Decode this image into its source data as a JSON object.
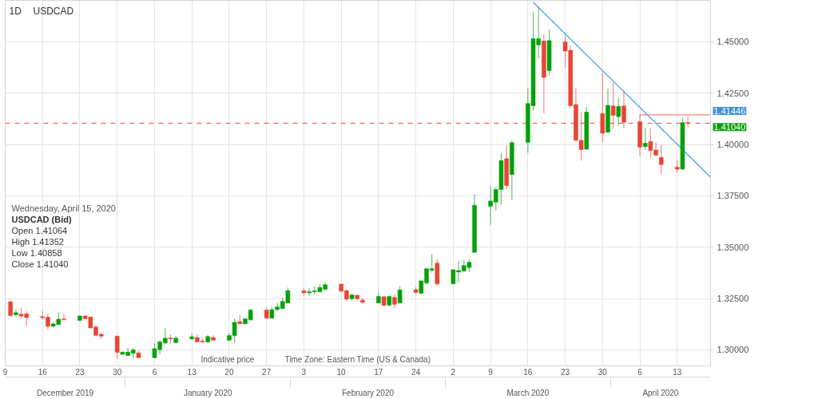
{
  "chart_data": {
    "type": "candlestick",
    "title": "USDCAD",
    "subtitle": "1D",
    "x": [
      "2019-12-10",
      "2019-12-11",
      "2019-12-12",
      "2019-12-13",
      "2019-12-16",
      "2019-12-17",
      "2019-12-18",
      "2019-12-19",
      "2019-12-20",
      "2019-12-23",
      "2019-12-24",
      "2019-12-25",
      "2019-12-26",
      "2019-12-27",
      "2019-12-30",
      "2019-12-31",
      "2020-01-01",
      "2020-01-02",
      "2020-01-03",
      "2020-01-06",
      "2020-01-07",
      "2020-01-08",
      "2020-01-09",
      "2020-01-10",
      "2020-01-13",
      "2020-01-14",
      "2020-01-15",
      "2020-01-16",
      "2020-01-17",
      "2020-01-20",
      "2020-01-21",
      "2020-01-22",
      "2020-01-23",
      "2020-01-24",
      "2020-01-27",
      "2020-01-28",
      "2020-01-29",
      "2020-01-30",
      "2020-01-31",
      "2020-02-03",
      "2020-02-04",
      "2020-02-05",
      "2020-02-06",
      "2020-02-07",
      "2020-02-10",
      "2020-02-11",
      "2020-02-12",
      "2020-02-13",
      "2020-02-14",
      "2020-02-17",
      "2020-02-18",
      "2020-02-19",
      "2020-02-20",
      "2020-02-21",
      "2020-02-24",
      "2020-02-25",
      "2020-02-26",
      "2020-02-27",
      "2020-02-28",
      "2020-03-02",
      "2020-03-03",
      "2020-03-04",
      "2020-03-05",
      "2020-03-06",
      "2020-03-09",
      "2020-03-10",
      "2020-03-11",
      "2020-03-12",
      "2020-03-13",
      "2020-03-16",
      "2020-03-17",
      "2020-03-18",
      "2020-03-19",
      "2020-03-20",
      "2020-03-23",
      "2020-03-24",
      "2020-03-25",
      "2020-03-26",
      "2020-03-27",
      "2020-03-30",
      "2020-03-31",
      "2020-04-01",
      "2020-04-02",
      "2020-04-03",
      "2020-04-06",
      "2020-04-07",
      "2020-04-08",
      "2020-04-09",
      "2020-04-10",
      "2020-04-13",
      "2020-04-14",
      "2020-04-15"
    ],
    "ohlc": [
      [
        1.3234,
        1.3241,
        1.3163,
        1.3167
      ],
      [
        1.3171,
        1.3195,
        1.3162,
        1.3181
      ],
      [
        1.3174,
        1.3204,
        1.3151,
        1.3165
      ],
      [
        1.3176,
        1.3188,
        1.3115,
        1.3157
      ],
      [
        1.3162,
        1.3188,
        1.3148,
        1.3157
      ],
      [
        1.3159,
        1.3176,
        1.3101,
        1.3115
      ],
      [
        1.3115,
        1.3136,
        1.311,
        1.3126
      ],
      [
        1.3123,
        1.3183,
        1.3123,
        1.3149
      ],
      [
        1.3151,
        1.3176,
        1.3142,
        1.3147
      ],
      [
        1.3144,
        1.3169,
        1.3139,
        1.3165
      ],
      [
        1.3165,
        1.3169,
        1.3151,
        1.3152
      ],
      [
        1.316,
        1.3161,
        1.3105,
        1.3107
      ],
      [
        1.3111,
        1.312,
        1.3065,
        1.3071
      ],
      [
        1.3076,
        1.3085,
        1.3053,
        1.3067
      ],
      [
        1.3067,
        1.307,
        1.2957,
        1.2988
      ],
      [
        1.2978,
        1.2992,
        1.2976,
        1.2989
      ],
      [
        1.2973,
        1.3009,
        1.2971,
        1.2989
      ],
      [
        1.2983,
        1.3009,
        1.296,
        1.3
      ],
      [
        1.2985,
        1.2994,
        1.296,
        1.2962
      ],
      [
        1.2962,
        1.3031,
        1.296,
        1.3006
      ],
      [
        1.3001,
        1.3047,
        1.2979,
        1.3039
      ],
      [
        1.3034,
        1.3105,
        1.3027,
        1.3057
      ],
      [
        1.3058,
        1.3076,
        1.3031,
        1.3053
      ],
      [
        1.3036,
        1.3068,
        1.3031,
        1.3057
      ],
      [
        1.3053,
        1.3081,
        1.3049,
        1.3064
      ],
      [
        1.306,
        1.3076,
        1.3036,
        1.3039
      ],
      [
        1.3043,
        1.3058,
        1.3034,
        1.3039
      ],
      [
        1.3039,
        1.3073,
        1.3033,
        1.3065
      ],
      [
        1.306,
        1.307,
        1.3047,
        1.3047
      ],
      [
        1.3047,
        1.3081,
        1.3043,
        1.307
      ],
      [
        1.307,
        1.3152,
        1.3036,
        1.3134
      ],
      [
        1.3138,
        1.3171,
        1.3126,
        1.3127
      ],
      [
        1.3127,
        1.3154,
        1.3122,
        1.3151
      ],
      [
        1.3146,
        1.32,
        1.3142,
        1.3194
      ],
      [
        1.3194,
        1.3207,
        1.3152,
        1.3154
      ],
      [
        1.3154,
        1.3211,
        1.3153,
        1.3196
      ],
      [
        1.3196,
        1.3228,
        1.3189,
        1.321
      ],
      [
        1.3202,
        1.3255,
        1.3196,
        1.3236
      ],
      [
        1.3228,
        1.3304,
        1.3227,
        1.3288
      ],
      [
        1.3288,
        1.3303,
        1.3264,
        1.3278
      ],
      [
        1.3278,
        1.3303,
        1.3263,
        1.3283
      ],
      [
        1.3283,
        1.3309,
        1.3269,
        1.3288
      ],
      [
        1.3283,
        1.332,
        1.3281,
        1.3304
      ],
      [
        1.3295,
        1.333,
        1.3289,
        1.3317
      ],
      [
        1.332,
        1.3322,
        1.3279,
        1.3286
      ],
      [
        1.3288,
        1.3296,
        1.3237,
        1.3247
      ],
      [
        1.3249,
        1.3273,
        1.3241,
        1.3268
      ],
      [
        1.3266,
        1.327,
        1.3237,
        1.3249
      ],
      [
        1.3242,
        1.3252,
        1.3225,
        1.3231
      ],
      [
        1.3228,
        1.328,
        1.3227,
        1.326
      ],
      [
        1.3259,
        1.326,
        1.3216,
        1.3216
      ],
      [
        1.3218,
        1.3269,
        1.3212,
        1.326
      ],
      [
        1.3255,
        1.327,
        1.3204,
        1.3222
      ],
      [
        1.3228,
        1.331,
        1.3227,
        1.3292
      ],
      [
        1.3293,
        1.3306,
        1.3268,
        1.328
      ],
      [
        1.3276,
        1.3339,
        1.3272,
        1.3336
      ],
      [
        1.3326,
        1.3397,
        1.3317,
        1.3395
      ],
      [
        1.3388,
        1.3465,
        1.3376,
        1.3395
      ],
      [
        1.3422,
        1.3441,
        1.3314,
        1.3321
      ],
      [
        1.3322,
        1.3391,
        1.3317,
        1.339
      ],
      [
        1.3379,
        1.3432,
        1.333,
        1.3386
      ],
      [
        1.3384,
        1.3438,
        1.3382,
        1.3411
      ],
      [
        1.3401,
        1.3441,
        1.338,
        1.3426
      ],
      [
        1.3475,
        1.3758,
        1.3474,
        1.3704
      ],
      [
        1.3699,
        1.3796,
        1.3609,
        1.3725
      ],
      [
        1.372,
        1.3794,
        1.3679,
        1.3781
      ],
      [
        1.3781,
        1.396,
        1.3707,
        1.3922
      ],
      [
        1.3931,
        1.3995,
        1.3781,
        1.38
      ],
      [
        1.3854,
        1.4021,
        1.3731,
        1.4009
      ],
      [
        1.401,
        1.4275,
        1.396,
        1.42
      ],
      [
        1.4189,
        1.4648,
        1.4164,
        1.4515
      ],
      [
        1.4485,
        1.4667,
        1.442,
        1.4515
      ],
      [
        1.4504,
        1.4537,
        1.4151,
        1.4327
      ],
      [
        1.436,
        1.4559,
        1.4336,
        1.4506
      ],
      [
        1.45,
        1.4531,
        1.4376,
        1.4455
      ],
      [
        1.4459,
        1.4481,
        1.4179,
        1.4189
      ],
      [
        1.4195,
        1.4275,
        1.401,
        1.4021
      ],
      [
        1.4021,
        1.4157,
        1.3922,
        1.3975
      ],
      [
        1.3977,
        1.4183,
        1.3977,
        1.4158
      ],
      [
        1.4151,
        1.4348,
        1.4012,
        1.4055
      ],
      [
        1.406,
        1.4272,
        1.4058,
        1.4191
      ],
      [
        1.4188,
        1.43,
        1.408,
        1.4142
      ],
      [
        1.4136,
        1.4225,
        1.4092,
        1.4186
      ],
      [
        1.4188,
        1.426,
        1.408,
        1.4109
      ],
      [
        1.4111,
        1.4148,
        1.3944,
        1.3988
      ],
      [
        1.399,
        1.408,
        1.3975,
        1.4006
      ],
      [
        1.4015,
        1.4078,
        1.3932,
        1.3971
      ],
      [
        1.3973,
        1.4009,
        1.3947,
        1.3948
      ],
      [
        1.3937,
        1.3999,
        1.3858,
        1.3902
      ],
      [
        1.389,
        1.3926,
        1.3863,
        1.388
      ],
      [
        1.388,
        1.4132,
        1.3878,
        1.4106
      ],
      [
        1.41064,
        1.41352,
        1.40858,
        1.4104
      ]
    ],
    "colors": [
      "#ea4335",
      "#06a00a",
      "#ea4335",
      "#ea4335",
      "#ea4335",
      "#ea4335",
      "#06a00a",
      "#06a00a",
      "#ea4335",
      "#06a00a",
      "#ea4335",
      "#ea4335",
      "#ea4335",
      "#ea4335",
      "#ea4335",
      "#06a00a",
      "#06a00a",
      "#06a00a",
      "#ea4335",
      "#06a00a",
      "#06a00a",
      "#06a00a",
      "#ea4335",
      "#06a00a",
      "#06a00a",
      "#ea4335",
      "#ea4335",
      "#06a00a",
      "#ea4335",
      "#06a00a",
      "#06a00a",
      "#ea4335",
      "#06a00a",
      "#06a00a",
      "#ea4335",
      "#06a00a",
      "#06a00a",
      "#06a00a",
      "#06a00a",
      "#ea4335",
      "#06a00a",
      "#06a00a",
      "#06a00a",
      "#06a00a",
      "#ea4335",
      "#ea4335",
      "#06a00a",
      "#ea4335",
      "#ea4335",
      "#06a00a",
      "#ea4335",
      "#06a00a",
      "#ea4335",
      "#06a00a",
      "#ea4335",
      "#06a00a",
      "#06a00a",
      "#06a00a",
      "#ea4335",
      "#06a00a",
      "#06a00a",
      "#06a00a",
      "#06a00a",
      "#06a00a",
      "#06a00a",
      "#06a00a",
      "#06a00a",
      "#ea4335",
      "#06a00a",
      "#06a00a",
      "#06a00a",
      "#06a00a",
      "#ea4335",
      "#06a00a",
      "#ea4335",
      "#ea4335",
      "#ea4335",
      "#ea4335",
      "#06a00a",
      "#ea4335",
      "#06a00a",
      "#ea4335",
      "#06a00a",
      "#ea4335",
      "#ea4335",
      "#06a00a",
      "#ea4335",
      "#ea4335",
      "#ea4335",
      "#ea4335",
      "#06a00a",
      "#ea4335"
    ],
    "series": [
      {
        "type": "line",
        "x": [
          "2020-03-17",
          "2020-04-19T06:00"
        ],
        "values": [
          1.4693,
          1.3841
        ],
        "color": "#4aa3df"
      },
      {
        "type": "line",
        "x": [
          "2020-04-06",
          "2020-04-19T06:00"
        ],
        "values": [
          1.41446,
          1.41446
        ],
        "color": "#f4817b",
        "value_labels": [
          null,
          "1.41446"
        ]
      }
    ],
    "ref_lines": [
      {
        "axis": "y",
        "value": 1.4104,
        "label": "1.41040",
        "color": "#e8453c",
        "line_style": "dashed"
      }
    ],
    "xlim": [
      "2019-12-09",
      "2020-04-19T06:00"
    ],
    "ylim": [
      1.2922,
      1.4702
    ],
    "xticks": [
      {
        "value": "2019-12-09",
        "label": "9"
      },
      {
        "value": "2019-12-16",
        "label": "16"
      },
      {
        "value": "2019-12-23",
        "label": "23"
      },
      {
        "value": "2019-12-30",
        "label": "30"
      },
      {
        "value": "2020-01-06",
        "label": "6"
      },
      {
        "value": "2020-01-13",
        "label": "13"
      },
      {
        "value": "2020-01-20",
        "label": "20"
      },
      {
        "value": "2020-01-27",
        "label": "27"
      },
      {
        "value": "2020-02-03",
        "label": "3"
      },
      {
        "value": "2020-02-10",
        "label": "10"
      },
      {
        "value": "2020-02-17",
        "label": "17"
      },
      {
        "value": "2020-02-24",
        "label": "24"
      },
      {
        "value": "2020-03-02",
        "label": "2"
      },
      {
        "value": "2020-03-09",
        "label": "9"
      },
      {
        "value": "2020-03-16",
        "label": "16"
      },
      {
        "value": "2020-03-23",
        "label": "23"
      },
      {
        "value": "2020-03-30",
        "label": "30"
      },
      {
        "value": "2020-04-06",
        "label": "6"
      },
      {
        "value": "2020-04-13",
        "label": "13"
      }
    ],
    "yticks": [
      {
        "value": 1.3,
        "label": "1.30000"
      },
      {
        "value": 1.325,
        "label": "1.32500"
      },
      {
        "value": 1.35,
        "label": "1.35000"
      },
      {
        "value": 1.375,
        "label": "1.37500"
      },
      {
        "value": 1.4,
        "label": "1.40000"
      },
      {
        "value": 1.425,
        "label": "1.42500"
      },
      {
        "value": 1.45,
        "label": "1.45000"
      }
    ],
    "grid": true,
    "annotations": [
      "Wednesday, April 15, 2020",
      "USDCAD (Bid)",
      "Open 1.41064",
      "High 1.41352",
      "Low 1.40858",
      "Close 1.41040",
      "Indicative price",
      "Time Zone: Eastern Time (US & Canada)",
      "December 2019",
      "January 2020",
      "February 2020",
      "March 2020",
      "April 2020"
    ]
  }
}
